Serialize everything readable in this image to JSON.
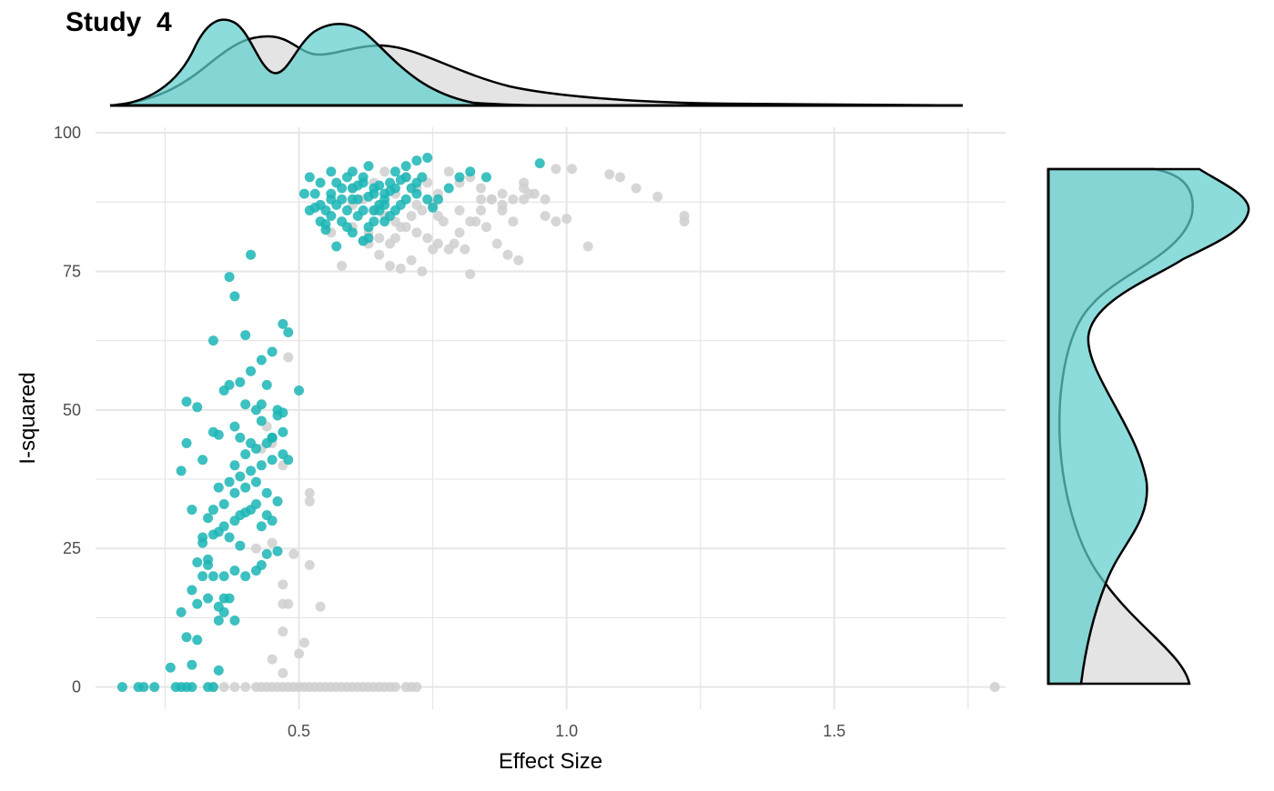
{
  "title": "Study  4",
  "colors": {
    "teal": "#1bb5b5",
    "teal_fill": "#5fcfcf",
    "grey": "#cfcfcf",
    "grey_fill": "#e0e0e0",
    "grid": "#e6e6e6"
  },
  "chart_data": {
    "type": "scatter",
    "title": "Study  4",
    "xlabel": "Effect Size",
    "ylabel": "I-squared",
    "xlim": [
      0.12,
      1.82
    ],
    "ylim": [
      -4,
      101
    ],
    "x_ticks": [
      0.5,
      1.0,
      1.5
    ],
    "x_tick_labels": [
      "0.5",
      "1.0",
      "1.5"
    ],
    "y_ticks": [
      0,
      25,
      50,
      75,
      100
    ],
    "y_tick_labels": [
      "0",
      "25",
      "50",
      "75",
      "100"
    ],
    "grid": true,
    "marginal": {
      "top": "density of Effect Size",
      "right": "density of I-squared"
    },
    "series": [
      {
        "color": "#cfcfcf",
        "points": [
          [
            0.42,
            0
          ],
          [
            0.43,
            0
          ],
          [
            0.44,
            0
          ],
          [
            0.45,
            0
          ],
          [
            0.46,
            0
          ],
          [
            0.47,
            0
          ],
          [
            0.48,
            0
          ],
          [
            0.49,
            0
          ],
          [
            0.5,
            0
          ],
          [
            0.51,
            0
          ],
          [
            0.52,
            0
          ],
          [
            0.53,
            0
          ],
          [
            0.54,
            0
          ],
          [
            0.55,
            0
          ],
          [
            0.56,
            0
          ],
          [
            0.57,
            0
          ],
          [
            0.58,
            0
          ],
          [
            0.59,
            0
          ],
          [
            0.6,
            0
          ],
          [
            0.61,
            0
          ],
          [
            0.62,
            0
          ],
          [
            0.63,
            0
          ],
          [
            0.64,
            0
          ],
          [
            0.65,
            0
          ],
          [
            0.66,
            0
          ],
          [
            0.67,
            0
          ],
          [
            0.68,
            0
          ],
          [
            0.7,
            0
          ],
          [
            0.71,
            0
          ],
          [
            0.72,
            0
          ],
          [
            0.4,
            0
          ],
          [
            0.38,
            0
          ],
          [
            0.36,
            0
          ],
          [
            0.34,
            0
          ],
          [
            1.8,
            0
          ],
          [
            0.47,
            2.5
          ],
          [
            0.45,
            5
          ],
          [
            0.5,
            6
          ],
          [
            0.51,
            8
          ],
          [
            0.47,
            10
          ],
          [
            0.47,
            15
          ],
          [
            0.48,
            15
          ],
          [
            0.54,
            14.5
          ],
          [
            0.47,
            18.5
          ],
          [
            0.52,
            22
          ],
          [
            0.49,
            24
          ],
          [
            0.45,
            26
          ],
          [
            0.42,
            25
          ],
          [
            0.52,
            33.5
          ],
          [
            0.52,
            35
          ],
          [
            0.47,
            40
          ],
          [
            0.43,
            43
          ],
          [
            0.45,
            44
          ],
          [
            0.44,
            47
          ],
          [
            0.48,
            59.5
          ],
          [
            0.6,
            87
          ],
          [
            0.62,
            88
          ],
          [
            0.64,
            86
          ],
          [
            0.66,
            85
          ],
          [
            0.68,
            84
          ],
          [
            0.7,
            83
          ],
          [
            0.72,
            82
          ],
          [
            0.74,
            81
          ],
          [
            0.76,
            80
          ],
          [
            0.78,
            79
          ],
          [
            0.8,
            82
          ],
          [
            0.82,
            84
          ],
          [
            0.84,
            86
          ],
          [
            0.86,
            88
          ],
          [
            0.88,
            86
          ],
          [
            0.9,
            84
          ],
          [
            0.92,
            88
          ],
          [
            0.94,
            89
          ],
          [
            0.96,
            85
          ],
          [
            0.98,
            84
          ],
          [
            1.0,
            84.5
          ],
          [
            1.01,
            93.5
          ],
          [
            1.04,
            79.5
          ],
          [
            1.08,
            92.5
          ],
          [
            1.1,
            92
          ],
          [
            1.13,
            90
          ],
          [
            1.17,
            88.5
          ],
          [
            1.22,
            85
          ],
          [
            1.22,
            84
          ],
          [
            0.98,
            93.5
          ],
          [
            0.66,
            93
          ],
          [
            0.7,
            92
          ],
          [
            0.72,
            90
          ],
          [
            0.74,
            91
          ],
          [
            0.76,
            89
          ],
          [
            0.78,
            93
          ],
          [
            0.8,
            91
          ],
          [
            0.82,
            92
          ],
          [
            0.84,
            90
          ],
          [
            0.86,
            88
          ],
          [
            0.88,
            87
          ],
          [
            0.9,
            88
          ],
          [
            0.92,
            90
          ],
          [
            0.93,
            89
          ],
          [
            0.63,
            82
          ],
          [
            0.65,
            81
          ],
          [
            0.67,
            80
          ],
          [
            0.69,
            83
          ],
          [
            0.71,
            85
          ],
          [
            0.73,
            86
          ],
          [
            0.75,
            87
          ],
          [
            0.77,
            84
          ],
          [
            0.79,
            80
          ],
          [
            0.81,
            79
          ],
          [
            0.83,
            84
          ],
          [
            0.85,
            83
          ],
          [
            0.87,
            80
          ],
          [
            0.89,
            78
          ],
          [
            0.91,
            77
          ],
          [
            0.63,
            80
          ],
          [
            0.65,
            78
          ],
          [
            0.67,
            76
          ],
          [
            0.69,
            75.5
          ],
          [
            0.71,
            77
          ],
          [
            0.73,
            75
          ],
          [
            0.75,
            79
          ],
          [
            0.58,
            76
          ],
          [
            0.62,
            80.5
          ],
          [
            0.6,
            83
          ],
          [
            0.56,
            82
          ],
          [
            0.68,
            81
          ],
          [
            0.82,
            74.5
          ],
          [
            0.6,
            90
          ],
          [
            0.64,
            91
          ],
          [
            0.68,
            89
          ],
          [
            0.72,
            87
          ],
          [
            0.76,
            85
          ],
          [
            0.8,
            86
          ],
          [
            0.84,
            88
          ],
          [
            0.88,
            89
          ],
          [
            0.92,
            91
          ],
          [
            0.96,
            88
          ]
        ]
      },
      {
        "color": "#1bb5b5",
        "points": [
          [
            0.17,
            0
          ],
          [
            0.2,
            0
          ],
          [
            0.21,
            0
          ],
          [
            0.23,
            0
          ],
          [
            0.27,
            0
          ],
          [
            0.28,
            0
          ],
          [
            0.29,
            0
          ],
          [
            0.3,
            0
          ],
          [
            0.33,
            0
          ],
          [
            0.34,
            0
          ],
          [
            0.26,
            3.5
          ],
          [
            0.3,
            4
          ],
          [
            0.35,
            3
          ],
          [
            0.31,
            8.5
          ],
          [
            0.29,
            9
          ],
          [
            0.28,
            13.5
          ],
          [
            0.31,
            15
          ],
          [
            0.33,
            16
          ],
          [
            0.36,
            16
          ],
          [
            0.37,
            16
          ],
          [
            0.36,
            13.5
          ],
          [
            0.35,
            12
          ],
          [
            0.38,
            12
          ],
          [
            0.35,
            14.5
          ],
          [
            0.3,
            17.5
          ],
          [
            0.32,
            20
          ],
          [
            0.33,
            22
          ],
          [
            0.34,
            20
          ],
          [
            0.36,
            20
          ],
          [
            0.38,
            21
          ],
          [
            0.4,
            20
          ],
          [
            0.42,
            21
          ],
          [
            0.43,
            22
          ],
          [
            0.44,
            24
          ],
          [
            0.46,
            24.5
          ],
          [
            0.31,
            22.5
          ],
          [
            0.33,
            23
          ],
          [
            0.32,
            26
          ],
          [
            0.34,
            27.5
          ],
          [
            0.35,
            28
          ],
          [
            0.36,
            29
          ],
          [
            0.38,
            30
          ],
          [
            0.39,
            31
          ],
          [
            0.4,
            31.5
          ],
          [
            0.41,
            32
          ],
          [
            0.42,
            33
          ],
          [
            0.44,
            31
          ],
          [
            0.45,
            30
          ],
          [
            0.43,
            29
          ],
          [
            0.37,
            27
          ],
          [
            0.39,
            25.5
          ],
          [
            0.33,
            30.5
          ],
          [
            0.34,
            32
          ],
          [
            0.36,
            33
          ],
          [
            0.38,
            35
          ],
          [
            0.4,
            36
          ],
          [
            0.42,
            37
          ],
          [
            0.44,
            35
          ],
          [
            0.46,
            33.5
          ],
          [
            0.35,
            36
          ],
          [
            0.37,
            37
          ],
          [
            0.39,
            38
          ],
          [
            0.41,
            39
          ],
          [
            0.43,
            40
          ],
          [
            0.45,
            41
          ],
          [
            0.47,
            42
          ],
          [
            0.38,
            40
          ],
          [
            0.4,
            42
          ],
          [
            0.42,
            43
          ],
          [
            0.44,
            44
          ],
          [
            0.45,
            45
          ],
          [
            0.47,
            46
          ],
          [
            0.34,
            46
          ],
          [
            0.35,
            45.5
          ],
          [
            0.39,
            45
          ],
          [
            0.41,
            44
          ],
          [
            0.43,
            48
          ],
          [
            0.42,
            50
          ],
          [
            0.38,
            47
          ],
          [
            0.4,
            51
          ],
          [
            0.43,
            51
          ],
          [
            0.46,
            49
          ],
          [
            0.29,
            51.5
          ],
          [
            0.31,
            50.5
          ],
          [
            0.36,
            53.5
          ],
          [
            0.37,
            54.5
          ],
          [
            0.39,
            55
          ],
          [
            0.41,
            57
          ],
          [
            0.43,
            59
          ],
          [
            0.44,
            54.5
          ],
          [
            0.48,
            41
          ],
          [
            0.5,
            53.5
          ],
          [
            0.47,
            49.5
          ],
          [
            0.45,
            45
          ],
          [
            0.46,
            50
          ],
          [
            0.48,
            64
          ],
          [
            0.47,
            65.5
          ],
          [
            0.45,
            60.5
          ],
          [
            0.4,
            63.5
          ],
          [
            0.34,
            62.5
          ],
          [
            0.28,
            39
          ],
          [
            0.3,
            32
          ],
          [
            0.32,
            27
          ],
          [
            0.29,
            44
          ],
          [
            0.32,
            41
          ],
          [
            0.38,
            70.5
          ],
          [
            0.37,
            74
          ],
          [
            0.41,
            78
          ],
          [
            0.52,
            92
          ],
          [
            0.53,
            89
          ],
          [
            0.54,
            87
          ],
          [
            0.55,
            86
          ],
          [
            0.56,
            89
          ],
          [
            0.57,
            91
          ],
          [
            0.58,
            88
          ],
          [
            0.59,
            86
          ],
          [
            0.6,
            90
          ],
          [
            0.61,
            88
          ],
          [
            0.62,
            92
          ],
          [
            0.63,
            94
          ],
          [
            0.64,
            90
          ],
          [
            0.65,
            87
          ],
          [
            0.66,
            89
          ],
          [
            0.67,
            91
          ],
          [
            0.68,
            93
          ],
          [
            0.7,
            94
          ],
          [
            0.72,
            95
          ],
          [
            0.74,
            95.5
          ],
          [
            0.53,
            86.5
          ],
          [
            0.54,
            84
          ],
          [
            0.55,
            82.5
          ],
          [
            0.56,
            85
          ],
          [
            0.57,
            87
          ],
          [
            0.58,
            84
          ],
          [
            0.59,
            83
          ],
          [
            0.6,
            82
          ],
          [
            0.61,
            85
          ],
          [
            0.62,
            86
          ],
          [
            0.63,
            83
          ],
          [
            0.64,
            84
          ],
          [
            0.65,
            86
          ],
          [
            0.66,
            88
          ],
          [
            0.67,
            85
          ],
          [
            0.68,
            86
          ],
          [
            0.69,
            87
          ],
          [
            0.7,
            88
          ],
          [
            0.71,
            90
          ],
          [
            0.72,
            91
          ],
          [
            0.73,
            92
          ],
          [
            0.75,
            86.5
          ],
          [
            0.76,
            88
          ],
          [
            0.78,
            90
          ],
          [
            0.8,
            92
          ],
          [
            0.82,
            93
          ],
          [
            0.85,
            92
          ],
          [
            0.95,
            94.5
          ],
          [
            0.57,
            79.5
          ],
          [
            0.62,
            80.5
          ],
          [
            0.63,
            81
          ],
          [
            0.55,
            83.5
          ],
          [
            0.52,
            86
          ],
          [
            0.51,
            89
          ],
          [
            0.54,
            91
          ],
          [
            0.56,
            93
          ],
          [
            0.6,
            93
          ],
          [
            0.62,
            91
          ],
          [
            0.64,
            89
          ],
          [
            0.66,
            87
          ],
          [
            0.68,
            90
          ],
          [
            0.7,
            92
          ],
          [
            0.72,
            89
          ],
          [
            0.74,
            88
          ],
          [
            0.58,
            90
          ],
          [
            0.6,
            88
          ],
          [
            0.64,
            86
          ],
          [
            0.66,
            84
          ],
          [
            0.56,
            88
          ],
          [
            0.59,
            92
          ],
          [
            0.61,
            90.5
          ],
          [
            0.63,
            88.5
          ],
          [
            0.65,
            90.5
          ],
          [
            0.67,
            89.5
          ],
          [
            0.69,
            91.5
          ]
        ]
      }
    ]
  }
}
